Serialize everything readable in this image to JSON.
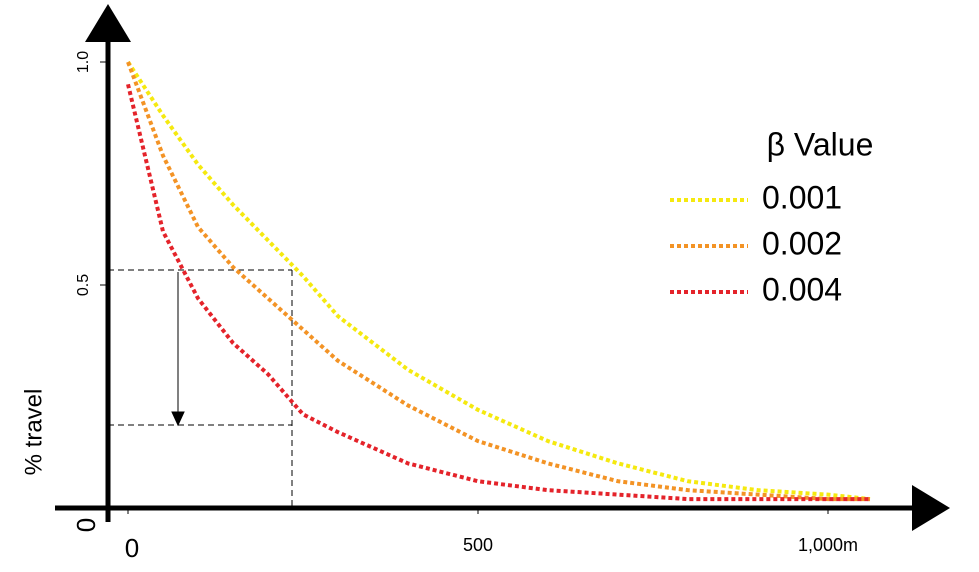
{
  "chart_data": {
    "type": "line",
    "y_label": "% travel",
    "legend_title": "β Value",
    "x": [
      0,
      50,
      100,
      150,
      200,
      250,
      300,
      400,
      500,
      600,
      700,
      800,
      900,
      1000,
      1060
    ],
    "series": [
      {
        "name": "0.001",
        "color": "#f5e90f",
        "values": [
          1.0,
          0.88,
          0.77,
          0.68,
          0.6,
          0.52,
          0.43,
          0.31,
          0.22,
          0.15,
          0.1,
          0.06,
          0.04,
          0.03,
          0.02
        ]
      },
      {
        "name": "0.002",
        "color": "#f39325",
        "values": [
          1.0,
          0.79,
          0.63,
          0.54,
          0.47,
          0.4,
          0.33,
          0.23,
          0.15,
          0.1,
          0.06,
          0.04,
          0.03,
          0.02,
          0.02
        ]
      },
      {
        "name": "0.004",
        "color": "#e4232a",
        "values": [
          0.95,
          0.62,
          0.47,
          0.37,
          0.3,
          0.21,
          0.17,
          0.1,
          0.06,
          0.04,
          0.03,
          0.02,
          0.02,
          0.02,
          0.02
        ]
      }
    ],
    "xlim": [
      0,
      1100
    ],
    "ylim": [
      0,
      1
    ],
    "xticks": [
      0,
      500,
      {
        "value": 1000,
        "label": "1,000m"
      }
    ],
    "yticks": [
      0,
      0.5,
      {
        "value": 1,
        "label": "1.0"
      }
    ],
    "grid": false
  }
}
